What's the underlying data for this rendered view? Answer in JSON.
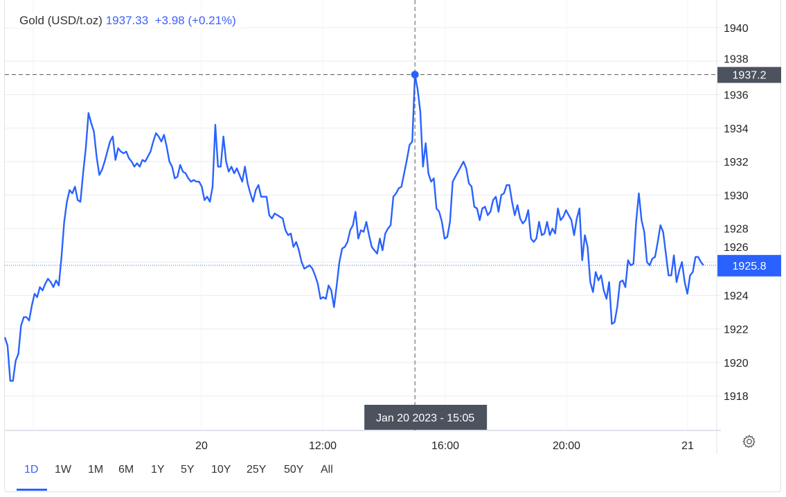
{
  "legend": {
    "instrument": "Gold (USD/t.oz)",
    "price": "1937.33",
    "change": "+3.98 (+0.21%)"
  },
  "colors": {
    "line": "#2962ff",
    "accent": "#3f5efb",
    "crosshair_tag": "#4c525e",
    "last_price_tag": "#2962ff",
    "grid": "#ebebeb"
  },
  "crosshair": {
    "time_label": "Jan 20 2023 - 15:05",
    "price_label": "1937.2"
  },
  "last_price_label": "1925.8",
  "ranges": [
    {
      "label": "1D",
      "active": true
    },
    {
      "label": "1W"
    },
    {
      "label": "1M"
    },
    {
      "label": "6M"
    },
    {
      "label": "1Y"
    },
    {
      "label": "5Y"
    },
    {
      "label": "10Y"
    },
    {
      "label": "25Y"
    },
    {
      "label": "50Y"
    },
    {
      "label": "All"
    }
  ],
  "settings_icon": "gear-icon",
  "chart_data": {
    "type": "line",
    "title": "",
    "xlabel": "",
    "ylabel": "",
    "ylim": [
      1916,
      1941.6
    ],
    "yticks": [
      1918,
      1920,
      1922,
      1924,
      1926,
      1928,
      1930,
      1932,
      1934,
      1936,
      1938,
      1940
    ],
    "xtick_labels": [
      "20",
      "12:00",
      "16:00",
      "20:00",
      "21"
    ],
    "grid": true,
    "last_value": 1925.8,
    "values": [
      1921.5,
      1921.0,
      1918.9,
      1918.9,
      1920.1,
      1920.5,
      1922.2,
      1922.7,
      1922.7,
      1922.5,
      1923.4,
      1924.1,
      1923.9,
      1924.5,
      1924.3,
      1924.7,
      1925.0,
      1924.8,
      1924.5,
      1924.9,
      1924.6,
      1926.3,
      1928.4,
      1929.6,
      1930.3,
      1930.1,
      1930.5,
      1929.7,
      1929.6,
      1931.3,
      1932.8,
      1934.9,
      1934.3,
      1933.8,
      1932.3,
      1931.2,
      1931.5,
      1932.0,
      1932.6,
      1933.2,
      1933.5,
      1932.1,
      1932.8,
      1932.6,
      1932.5,
      1932.6,
      1932.2,
      1932.0,
      1931.7,
      1931.9,
      1931.7,
      1932.1,
      1932.0,
      1932.3,
      1932.6,
      1933.2,
      1933.7,
      1933.5,
      1933.2,
      1933.6,
      1932.9,
      1932.0,
      1931.7,
      1931.0,
      1931.1,
      1931.8,
      1931.4,
      1931.3,
      1931.0,
      1930.8,
      1930.9,
      1930.8,
      1930.8,
      1930.5,
      1929.7,
      1929.9,
      1929.6,
      1930.5,
      1934.2,
      1931.7,
      1931.7,
      1933.5,
      1932.0,
      1931.4,
      1931.7,
      1931.3,
      1931.6,
      1931.2,
      1930.8,
      1931.7,
      1930.7,
      1930.1,
      1929.6,
      1930.3,
      1930.6,
      1929.9,
      1929.9,
      1929.9,
      1928.8,
      1928.6,
      1928.9,
      1928.8,
      1928.7,
      1928.6,
      1927.9,
      1927.6,
      1927.7,
      1926.9,
      1927.2,
      1926.7,
      1926.0,
      1925.6,
      1925.7,
      1925.8,
      1925.6,
      1925.2,
      1924.7,
      1923.8,
      1923.9,
      1923.8,
      1924.6,
      1924.3,
      1923.3,
      1924.6,
      1926.0,
      1926.8,
      1926.9,
      1927.2,
      1927.9,
      1928.2,
      1929.0,
      1927.4,
      1927.9,
      1927.8,
      1928.4,
      1927.6,
      1926.9,
      1926.7,
      1926.5,
      1927.4,
      1926.7,
      1927.7,
      1928.0,
      1928.2,
      1929.9,
      1930.1,
      1930.4,
      1930.5,
      1931.3,
      1932.1,
      1933.0,
      1933.2,
      1937.2,
      1936.3,
      1935.0,
      1931.7,
      1933.1,
      1931.3,
      1930.8,
      1931.0,
      1929.2,
      1929.0,
      1928.4,
      1927.4,
      1927.5,
      1928.4,
      1930.8,
      1931.1,
      1931.4,
      1931.7,
      1932.0,
      1931.6,
      1930.7,
      1930.5,
      1929.3,
      1929.2,
      1928.5,
      1929.2,
      1929.3,
      1928.8,
      1929.0,
      1929.7,
      1929.9,
      1929.0,
      1930.0,
      1930.1,
      1930.6,
      1930.6,
      1929.6,
      1928.8,
      1929.4,
      1928.6,
      1928.3,
      1928.5,
      1929.1,
      1927.4,
      1927.2,
      1927.4,
      1928.4,
      1927.6,
      1927.7,
      1928.4,
      1927.6,
      1928.0,
      1927.7,
      1929.2,
      1928.5,
      1928.7,
      1929.1,
      1928.8,
      1928.5,
      1927.6,
      1928.6,
      1929.2,
      1926.1,
      1927.6,
      1926.9,
      1924.8,
      1924.2,
      1925.4,
      1924.9,
      1925.2,
      1924.3,
      1923.8,
      1924.8,
      1922.3,
      1922.4,
      1923.3,
      1924.8,
      1924.9,
      1924.5,
      1926.1,
      1925.8,
      1925.9,
      1928.4,
      1930.1,
      1928.5,
      1927.8,
      1926.0,
      1925.8,
      1926.2,
      1926.3,
      1927.2,
      1928.2,
      1927.8,
      1926.5,
      1925.2,
      1925.2,
      1926.4,
      1924.8,
      1925.5,
      1926.0,
      1924.8,
      1924.1,
      1925.2,
      1925.4,
      1926.3,
      1926.3,
      1926.0,
      1925.8
    ]
  }
}
